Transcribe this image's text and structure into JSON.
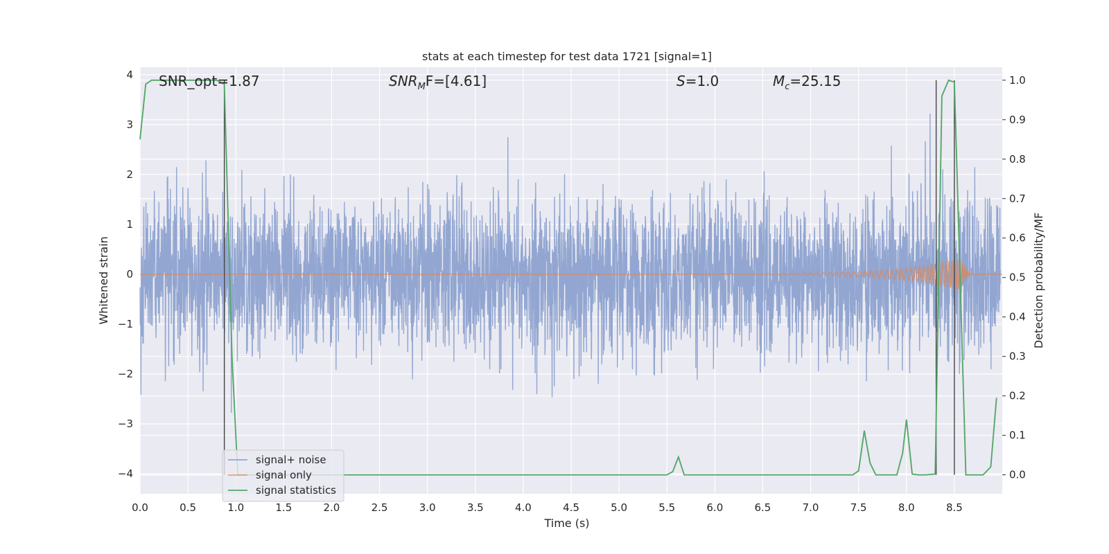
{
  "chart_data": {
    "type": "line",
    "title": "stats at each timestep for test data 1721 [signal=1]",
    "xlabel": "Time (s)",
    "ylabel_left": "Whitened strain",
    "ylabel_right": "Detection probability/MF",
    "xlim": [
      0.0,
      9.0
    ],
    "ylim_left": [
      -4.4,
      4.15
    ],
    "ylim_right": [
      -0.048,
      1.033
    ],
    "x_ticks": [
      "0.0",
      "0.5",
      "1.0",
      "1.5",
      "2.0",
      "2.5",
      "3.0",
      "3.5",
      "4.0",
      "4.5",
      "5.0",
      "5.5",
      "6.0",
      "6.5",
      "7.0",
      "7.5",
      "8.0",
      "8.5"
    ],
    "y_ticks_left": [
      "4",
      "3",
      "2",
      "1",
      "0",
      "−1",
      "−2",
      "−3",
      "−4"
    ],
    "y_ticks_right": [
      "1.0",
      "0.9",
      "0.8",
      "0.7",
      "0.6",
      "0.5",
      "0.4",
      "0.3",
      "0.2",
      "0.1",
      "0.0"
    ],
    "grid": true,
    "legend_position": "lower-left",
    "annotations": [
      {
        "id": "snr-opt",
        "text": "SNR_opt=1.87"
      },
      {
        "id": "snr-mf",
        "text": "SNR_MF=[4.61]",
        "display_base": "SNR",
        "display_sub": "M",
        "display_rest": "F=[4.61]"
      },
      {
        "id": "s",
        "text": "S=1.0",
        "display_base": "S",
        "display_rest": "=1.0"
      },
      {
        "id": "mc",
        "text": "M_c=25.15",
        "display_base": "M",
        "display_sub": "c",
        "display_rest": "=25.15"
      }
    ],
    "vertical_lines_x": [
      0.88,
      8.31,
      8.5
    ],
    "series": [
      {
        "name": "signal+ noise",
        "color": "#92a6d1",
        "axis": "left",
        "style": "dense noise, approx std 0.8, peaks up to 3.5 and down to -4.0"
      },
      {
        "name": "signal only",
        "color": "#dd8452",
        "axis": "left",
        "style": "chirp near 0 growing to amplitude 0.4 at 8.55 then ending at 8.65"
      },
      {
        "name": "signal statistics",
        "color": "#55a868",
        "axis": "right",
        "x": [
          0.0,
          0.06,
          0.12,
          0.2,
          0.4,
          0.6,
          0.8,
          0.88,
          0.96,
          1.02,
          1.1,
          2.0,
          3.0,
          4.0,
          5.0,
          5.5,
          5.56,
          5.62,
          5.68,
          6.0,
          7.0,
          7.44,
          7.5,
          7.56,
          7.62,
          7.68,
          7.9,
          7.96,
          8.0,
          8.06,
          8.12,
          8.2,
          8.3,
          8.37,
          8.44,
          8.5,
          8.56,
          8.62,
          8.7,
          8.8,
          8.88,
          8.94
        ],
        "values": [
          0.85,
          0.99,
          1.0,
          1.0,
          1.0,
          1.0,
          1.0,
          0.99,
          0.3,
          0.0,
          0.0,
          0.0,
          0.0,
          0.0,
          0.0,
          0.0,
          0.008,
          0.045,
          0.0,
          0.0,
          0.0,
          0.0,
          0.01,
          0.112,
          0.03,
          0.0,
          0.0,
          0.055,
          0.14,
          0.002,
          0.0,
          0.0,
          0.002,
          0.96,
          1.0,
          0.995,
          0.5,
          0.0,
          0.0,
          0.0,
          0.02,
          0.195
        ]
      }
    ],
    "colors": {
      "plot_background": "#eaeaf2",
      "grid": "#ffffff",
      "vertical_line": "#444444"
    }
  }
}
